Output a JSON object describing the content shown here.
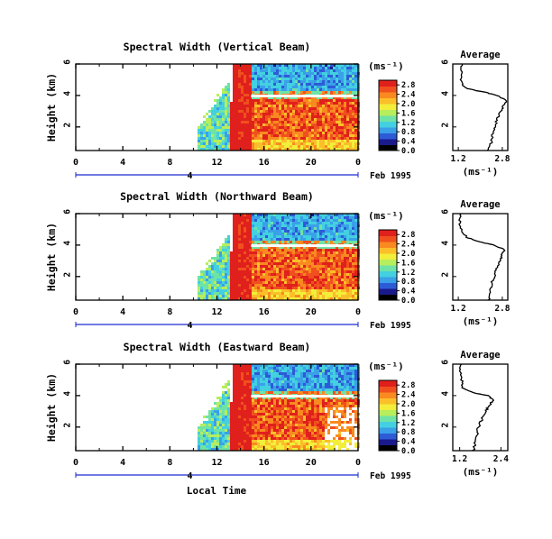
{
  "figure": {
    "ylabel": "Height (km)",
    "xlabel": "Local Time",
    "date_label": "Feb 1995",
    "unit_label": "(ms⁻¹)",
    "avg_title": "Average",
    "avg_xlabel": "(ms⁻¹)",
    "day_marker": "4"
  },
  "colorbar": {
    "colors": [
      "#000000",
      "#1a1a8c",
      "#2d5bd6",
      "#3aa0e8",
      "#43d0e0",
      "#6fe3a6",
      "#b7ee5c",
      "#f2ee3a",
      "#fbbf2a",
      "#f98a20",
      "#f0501e",
      "#e0201c"
    ]
  },
  "chart_data": [
    {
      "type": "heatmap",
      "title": "Spectral Width (Vertical Beam)",
      "xlabel": "Local Time",
      "ylabel": "Height (km)",
      "x_ticks": [
        "0",
        "4",
        "8",
        "12",
        "16",
        "20",
        "0"
      ],
      "xlim": [
        0,
        24
      ],
      "y_ticks": [
        "2",
        "4",
        "6"
      ],
      "ylim": [
        0.5,
        6
      ],
      "colorbar_ticks": [
        "0.0",
        "0.4",
        "0.8",
        "1.2",
        "1.6",
        "2.0",
        "2.4",
        "2.8"
      ],
      "colorbar_range": [
        0,
        3.0
      ],
      "average_profile": {
        "title": "Average",
        "xlabel": "(ms⁻¹)",
        "x_ticks": [
          "1.2",
          "2.8"
        ],
        "xlim": [
          1.0,
          3.0
        ],
        "y_ticks": [
          "2",
          "4",
          "6"
        ],
        "points": [
          [
            2.3,
            0.5
          ],
          [
            2.4,
            1.0
          ],
          [
            2.45,
            1.5
          ],
          [
            2.55,
            2.0
          ],
          [
            2.6,
            2.5
          ],
          [
            2.75,
            3.0
          ],
          [
            2.85,
            3.4
          ],
          [
            2.95,
            3.7
          ],
          [
            2.6,
            4.0
          ],
          [
            2.2,
            4.2
          ],
          [
            1.6,
            4.4
          ],
          [
            1.35,
            4.6
          ],
          [
            1.3,
            5.0
          ],
          [
            1.3,
            5.5
          ],
          [
            1.35,
            6.0
          ]
        ]
      }
    },
    {
      "type": "heatmap",
      "title": "Spectral Width (Northward Beam)",
      "xlabel": "Local Time",
      "ylabel": "Height (km)",
      "x_ticks": [
        "0",
        "4",
        "8",
        "12",
        "16",
        "20",
        "0"
      ],
      "xlim": [
        0,
        24
      ],
      "y_ticks": [
        "2",
        "4",
        "6"
      ],
      "ylim": [
        0.5,
        6
      ],
      "colorbar_ticks": [
        "0.0",
        "0.4",
        "0.8",
        "1.2",
        "1.6",
        "2.0",
        "2.4",
        "2.8"
      ],
      "colorbar_range": [
        0,
        3.0
      ],
      "average_profile": {
        "title": "Average",
        "xlabel": "(ms⁻¹)",
        "x_ticks": [
          "1.2",
          "2.8"
        ],
        "xlim": [
          1.0,
          3.0
        ],
        "y_ticks": [
          "2",
          "4",
          "6"
        ],
        "points": [
          [
            2.3,
            0.5
          ],
          [
            2.35,
            1.0
          ],
          [
            2.4,
            1.5
          ],
          [
            2.5,
            2.0
          ],
          [
            2.6,
            2.5
          ],
          [
            2.7,
            3.0
          ],
          [
            2.8,
            3.4
          ],
          [
            2.9,
            3.7
          ],
          [
            2.5,
            4.0
          ],
          [
            2.0,
            4.2
          ],
          [
            1.5,
            4.5
          ],
          [
            1.3,
            5.0
          ],
          [
            1.25,
            5.5
          ],
          [
            1.3,
            6.0
          ]
        ]
      }
    },
    {
      "type": "heatmap",
      "title": "Spectral Width (Eastward Beam)",
      "xlabel": "Local Time",
      "ylabel": "Height (km)",
      "x_ticks": [
        "0",
        "4",
        "8",
        "12",
        "16",
        "20",
        "0"
      ],
      "xlim": [
        0,
        24
      ],
      "y_ticks": [
        "2",
        "4",
        "6"
      ],
      "ylim": [
        0.5,
        6
      ],
      "colorbar_ticks": [
        "0.0",
        "0.4",
        "0.8",
        "1.2",
        "1.6",
        "2.0",
        "2.4",
        "2.8"
      ],
      "colorbar_range": [
        0,
        3.0
      ],
      "average_profile": {
        "title": "Average",
        "xlabel": "(ms⁻¹)",
        "x_ticks": [
          "1.2",
          "2.4"
        ],
        "xlim": [
          1.0,
          2.6
        ],
        "y_ticks": [
          "2",
          "4",
          "6"
        ],
        "points": [
          [
            1.6,
            0.5
          ],
          [
            1.65,
            1.0
          ],
          [
            1.7,
            1.5
          ],
          [
            1.75,
            2.0
          ],
          [
            1.85,
            2.5
          ],
          [
            1.95,
            3.0
          ],
          [
            2.05,
            3.4
          ],
          [
            2.2,
            3.7
          ],
          [
            2.0,
            4.0
          ],
          [
            1.6,
            4.2
          ],
          [
            1.3,
            4.5
          ],
          [
            1.25,
            5.0
          ],
          [
            1.2,
            5.5
          ],
          [
            1.25,
            6.0
          ]
        ]
      }
    }
  ]
}
